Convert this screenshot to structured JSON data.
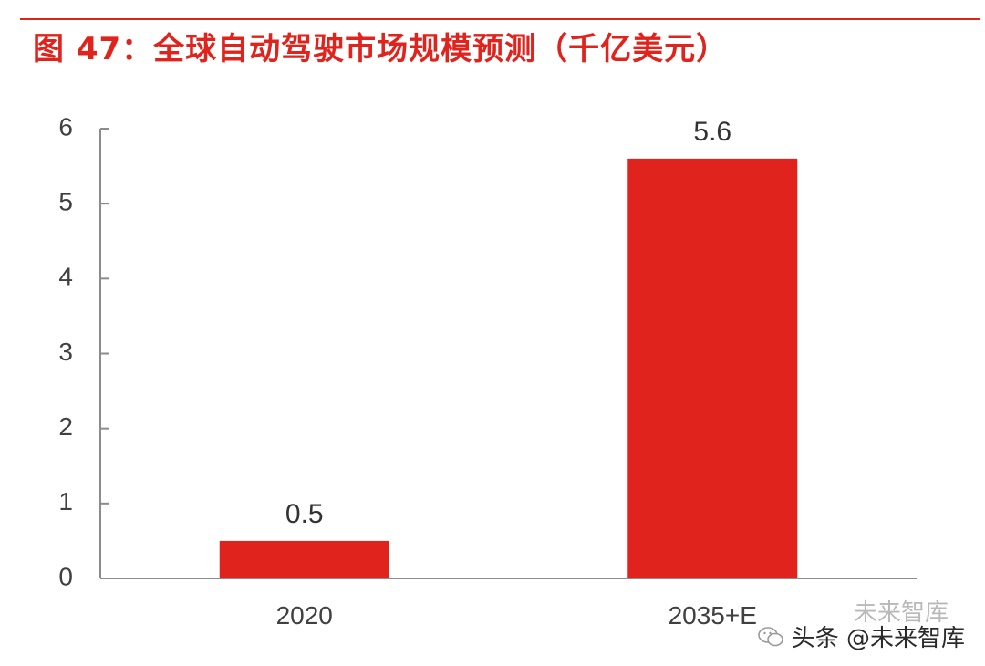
{
  "title": "图 47：全球自动驾驶市场规模预测（千亿美元）",
  "colors": {
    "accent": "#e0231c",
    "bar": "#e0231c",
    "axis": "#8c8c8c",
    "text": "#404040"
  },
  "chart_data": {
    "type": "bar",
    "title": "图 47：全球自动驾驶市场规模预测（千亿美元）",
    "categories": [
      "2020",
      "2035+E"
    ],
    "values": [
      0.5,
      5.6
    ],
    "data_labels": [
      "0.5",
      "5.6"
    ],
    "ylim": [
      0,
      6
    ],
    "yticks": [
      0,
      1,
      2,
      3,
      4,
      5,
      6
    ],
    "xlabel": "",
    "ylabel": "",
    "grid": false,
    "legend": "none"
  },
  "watermark": {
    "ghost_text": "未来智库",
    "text": "头条 @未来智库",
    "icon": "wechat-icon"
  }
}
